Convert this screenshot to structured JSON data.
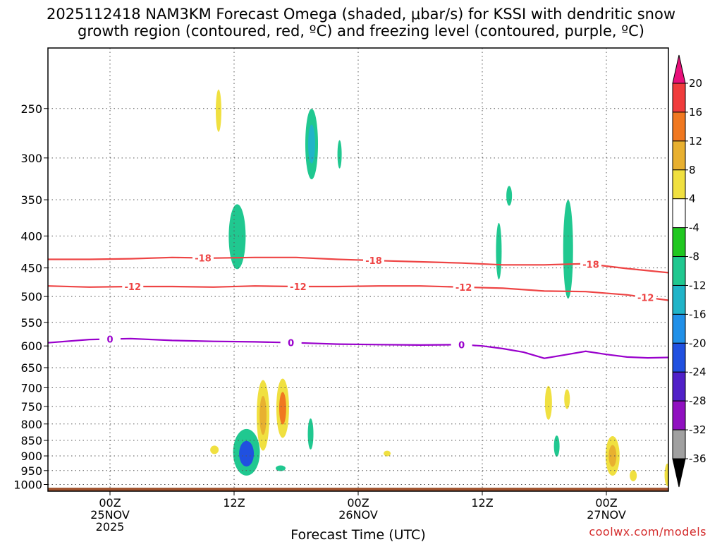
{
  "title": {
    "line1": "2025112418 NAM3KM Forecast Omega (shaded, μbar/s) for KSSI with dendritic snow",
    "line2": "growth region (contoured, red, ºC) and freezing level (contoured, purple, ºC)"
  },
  "credit": "coolwx.com/models",
  "colors": {
    "temp_contour": "#ee4444",
    "freezing_contour": "#9900cc",
    "terrain": "#a0522d"
  },
  "chart_data": {
    "type": "heatmap",
    "title": "2025112418 NAM3KM Forecast Omega (shaded, μbar/s) for KSSI with dendritic snow growth region (contoured, red, ºC) and freezing level (contoured, purple, ºC)",
    "xlabel": "Forecast Time (UTC)",
    "ylabel": "",
    "x_unit": "hours from 2025-11-24 18Z",
    "xlim": [
      0,
      60
    ],
    "y_unit": "hPa",
    "ylim": [
      1025,
      200
    ],
    "y_scale": "log",
    "grid": true,
    "x_ticks": [
      {
        "x": 6,
        "lines": [
          "00Z",
          "25NOV",
          "2025"
        ]
      },
      {
        "x": 18,
        "lines": [
          "12Z"
        ]
      },
      {
        "x": 30,
        "lines": [
          "00Z",
          "26NOV"
        ]
      },
      {
        "x": 42,
        "lines": [
          "12Z"
        ]
      },
      {
        "x": 54,
        "lines": [
          "00Z",
          "27NOV"
        ]
      }
    ],
    "y_ticks": [
      250,
      300,
      350,
      400,
      450,
      500,
      550,
      600,
      650,
      700,
      750,
      800,
      850,
      900,
      950,
      1000
    ],
    "colorbar": {
      "labels": [
        "20",
        "16",
        "12",
        "8",
        "4",
        "-4",
        "-8",
        "-12",
        "-16",
        "-20",
        "-24",
        "-28",
        "-32",
        "-36"
      ],
      "top_color": "#e8107a",
      "bottom_color": "#000000",
      "colors": [
        "#f03c3c",
        "#f07820",
        "#e8b030",
        "#f0e040",
        "#ffffff",
        "#20c820",
        "#20c890",
        "#20b4c8",
        "#2090e8",
        "#2050e0",
        "#5020c8",
        "#9010c0",
        "#a0a0a0"
      ]
    },
    "contours": [
      {
        "name": "-18",
        "color": "#ee4444",
        "x": [
          -6,
          0,
          4,
          8,
          12,
          16,
          20,
          24,
          28,
          32,
          36,
          40,
          44,
          48,
          52,
          56,
          60
        ],
        "p": [
          437,
          436,
          436,
          435,
          433,
          434,
          433,
          433,
          436,
          438,
          440,
          442,
          445,
          445,
          443,
          451,
          458
        ],
        "label_x": [
          15,
          31.5,
          52.5
        ]
      },
      {
        "name": "-12",
        "color": "#ee4444",
        "x": [
          -6,
          0,
          4,
          8,
          12,
          16,
          20,
          24,
          28,
          32,
          36,
          40,
          44,
          48,
          52,
          56,
          60
        ],
        "p": [
          484,
          481,
          483,
          482,
          482,
          483,
          481,
          482,
          482,
          481,
          481,
          483,
          485,
          490,
          491,
          497,
          507
        ],
        "label_x": [
          8.2,
          24.2,
          40.2,
          57.8
        ]
      },
      {
        "name": "0",
        "color": "#9900cc",
        "x": [
          -6,
          0,
          4,
          8,
          12,
          16,
          20,
          24,
          28,
          32,
          36,
          40,
          42,
          44,
          46,
          48,
          50,
          52,
          54,
          56,
          58,
          60
        ],
        "p": [
          597,
          593,
          586,
          584,
          588,
          590,
          591,
          593,
          596,
          597,
          598,
          597,
          600,
          606,
          614,
          628,
          620,
          612,
          619,
          625,
          627,
          626
        ],
        "label_x": [
          6,
          23.5,
          40
        ]
      }
    ],
    "omega_blobs": [
      {
        "x": 16.5,
        "p": 252,
        "value": 4,
        "peak": 4
      },
      {
        "x": 18.3,
        "p": 401,
        "value": -8,
        "peak": -8
      },
      {
        "x": 25.5,
        "p": 285,
        "value": -8,
        "peak": -12
      },
      {
        "x": 28.2,
        "p": 296,
        "value": -8,
        "peak": -8
      },
      {
        "x": 43.6,
        "p": 423,
        "value": -8,
        "peak": -8
      },
      {
        "x": 44.6,
        "p": 345,
        "value": -8,
        "peak": -8
      },
      {
        "x": 50.3,
        "p": 420,
        "value": -8,
        "peak": -8
      },
      {
        "x": 20.8,
        "p": 775,
        "value": 4,
        "peak": 8
      },
      {
        "x": 22.7,
        "p": 755,
        "value": 4,
        "peak": 12
      },
      {
        "x": 19.2,
        "p": 888,
        "value": -8,
        "peak": -20
      },
      {
        "x": 25.4,
        "p": 830,
        "value": -8,
        "peak": -8
      },
      {
        "x": 22.5,
        "p": 942,
        "value": -8,
        "peak": -8
      },
      {
        "x": 48.4,
        "p": 740,
        "value": 4,
        "peak": 4
      },
      {
        "x": 50.2,
        "p": 730,
        "value": 4,
        "peak": 4
      },
      {
        "x": 49.2,
        "p": 868,
        "value": -8,
        "peak": -8
      },
      {
        "x": 54.6,
        "p": 900,
        "value": 4,
        "peak": 8
      },
      {
        "x": 56.6,
        "p": 968,
        "value": 4,
        "peak": 4
      },
      {
        "x": 59.9,
        "p": 965,
        "value": 4,
        "peak": 4
      },
      {
        "x": 32.8,
        "p": 892,
        "value": 4,
        "peak": 4
      },
      {
        "x": 16.1,
        "p": 880,
        "value": 4,
        "peak": 4
      }
    ],
    "terrain": {
      "surface_p": 1012
    }
  }
}
